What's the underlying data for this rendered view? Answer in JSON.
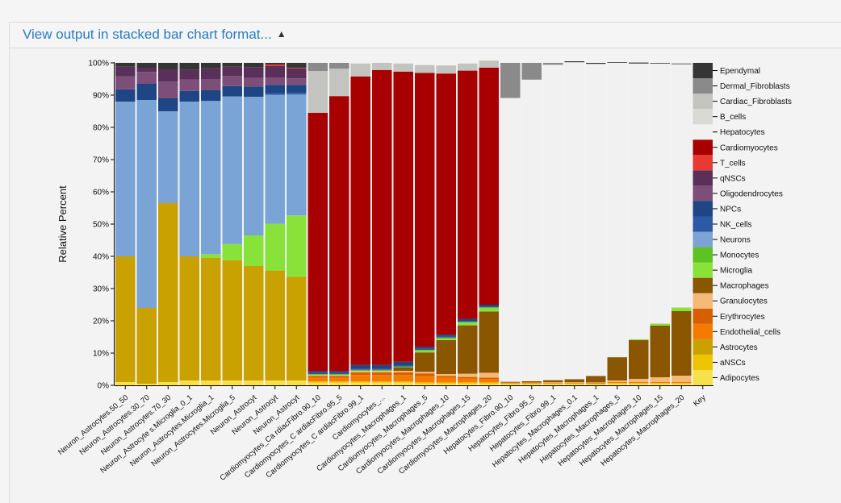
{
  "panel": {
    "title": "View output in stacked bar chart format...",
    "caret_icon": "caret-up-icon"
  },
  "chart_data": {
    "type": "bar",
    "stacked": true,
    "ylabel": "Relative Percent",
    "ylim": [
      0,
      100
    ],
    "ytick_labels": [
      "0%",
      "10%",
      "20%",
      "30%",
      "40%",
      "50%",
      "60%",
      "70%",
      "80%",
      "90%",
      "100%"
    ],
    "legend_position": "right",
    "key_label": "Key",
    "categories": [
      "Neuron_Astrocytes.50_50",
      "Neuron_Astrocytes.30_70",
      "Neuron_Astrocytes.70_30",
      "Neuron_Astrocyte s.Microglia_0_1",
      "Neuron_Astrocytes.Microglia_1",
      "Neuron_Astrocytes.Microglia_5",
      "Neuron_Astrocyt",
      "Neuron_Astrocyt",
      "Neuron_Astrocyt",
      "Cardiomyocytes_Ca rdiacFibro.90_10",
      "Cardiomyocytes_C ardiacFibro.95_5",
      "Cardiomyocytes_C ardiacFibro.99_1",
      "Cardiomyocytes_...",
      "Cardiomyocytes_Macrophages_1",
      "Cardiomyocytes_Macrophages_5",
      "Cardiomyocytes_Macrophages_10",
      "Cardiomyocytes_Macrophages_15",
      "Cardiomyocytes_Macrophages_20",
      "Hepatocytes_Fibro.90_10",
      "Hepatocytes_Fibro.95_5",
      "Hepatocytes_Fibro.99_1",
      "Hepatocytes_Macrophages_0.1",
      "Hepatocytes_Macrophages_1",
      "Hepatocytes_Macrophages_5",
      "Hepatocytes_Macrophages_10",
      "Hepatocytes_Macrophages_15",
      "Hepatocytes_Macrophages_20"
    ],
    "series": [
      {
        "name": "Adipocytes",
        "color": "#f7e14a",
        "values": [
          1,
          0.5,
          1,
          1.5,
          1.5,
          1.5,
          1.5,
          1.5,
          1.5,
          0.8,
          0.8,
          0.8,
          0.8,
          0.8,
          0.5,
          0.5,
          0.5,
          0.5,
          0.4,
          0.4,
          0.4,
          0.4,
          0.3,
          0.5,
          0.5,
          0.5,
          0.5
        ]
      },
      {
        "name": "aNSCs",
        "color": "#eec300",
        "values": [
          0,
          0,
          0,
          0,
          0,
          0,
          0,
          0,
          0,
          0.4,
          0.4,
          0.4,
          0.4,
          0.4,
          0.4,
          0.4,
          0.4,
          0.4,
          0.2,
          0.2,
          0.2,
          0.2,
          0.2,
          0.2,
          0.2,
          0.2,
          0.2
        ]
      },
      {
        "name": "Astrocytes",
        "color": "#c9a100",
        "values": [
          39,
          23.5,
          55.5,
          38.5,
          38,
          37.3,
          35.5,
          34.1,
          32.2,
          0,
          0,
          0,
          0,
          0,
          0,
          0,
          0,
          0,
          0,
          0,
          0,
          0,
          0,
          0,
          0,
          0,
          0
        ]
      },
      {
        "name": "Endothelial_cells",
        "color": "#f47a00",
        "values": [
          0,
          0,
          0,
          0,
          0,
          0,
          0,
          0,
          0,
          1.2,
          1.2,
          2,
          2,
          2,
          2,
          1.5,
          1.2,
          1,
          0.2,
          0.2,
          0.2,
          0.2,
          0.2,
          0.2,
          0.2,
          0.2,
          0.2
        ]
      },
      {
        "name": "Erythrocytes",
        "color": "#d65f00",
        "values": [
          0,
          0,
          0,
          0,
          0,
          0,
          0,
          0,
          0,
          0.5,
          0.5,
          0.8,
          0.8,
          0.8,
          0.8,
          0.5,
          0.5,
          0.5,
          0.1,
          0.1,
          0.1,
          0.1,
          0.1,
          0.1,
          0.1,
          0.1,
          0.1
        ]
      },
      {
        "name": "Granulocytes",
        "color": "#f4b977",
        "values": [
          0,
          0,
          0,
          0,
          0,
          0,
          0,
          0,
          0,
          0.3,
          0.3,
          0.5,
          0.5,
          0.5,
          0.5,
          0.6,
          1,
          1.5,
          0,
          0,
          0.1,
          0.1,
          0.1,
          0.5,
          1,
          1.5,
          2
        ]
      },
      {
        "name": "Macrophages",
        "color": "#8a5600",
        "values": [
          0,
          0,
          0,
          0,
          0,
          0,
          0,
          0,
          0,
          0,
          0,
          0,
          0,
          1,
          6,
          10.5,
          15,
          19,
          0.2,
          0.4,
          0.6,
          0.9,
          2,
          7.2,
          12,
          16,
          20
        ]
      },
      {
        "name": "Microglia",
        "color": "#88e23a",
        "values": [
          0,
          0,
          0,
          0,
          1.2,
          5,
          9.5,
          14.5,
          19,
          0,
          0,
          0,
          0,
          0,
          0.5,
          0.5,
          0.8,
          1,
          0,
          0,
          0,
          0,
          0,
          0.1,
          0.2,
          0.5,
          1
        ]
      },
      {
        "name": "Monocytes",
        "color": "#5ec322",
        "values": [
          0,
          0,
          0,
          0,
          0,
          0,
          0,
          0,
          0,
          0.3,
          0.3,
          0.3,
          0.3,
          0.3,
          0.3,
          0.3,
          0.3,
          0.3,
          0,
          0,
          0,
          0,
          0,
          0,
          0.1,
          0.1,
          0.1
        ]
      },
      {
        "name": "Neurons",
        "color": "#7aa3d6",
        "values": [
          48,
          64.5,
          28.5,
          48,
          47.5,
          45.8,
          43,
          40,
          37.5,
          0,
          0,
          0,
          0,
          0,
          0,
          0,
          0,
          0,
          0,
          0,
          0,
          0,
          0,
          0,
          0,
          0,
          0
        ]
      },
      {
        "name": "NK_cells",
        "color": "#2d5aa3",
        "values": [
          0,
          0,
          0,
          0,
          0,
          0,
          0,
          0.5,
          0.5,
          0.3,
          0.3,
          0.3,
          0.3,
          0.3,
          0.3,
          0.3,
          0.3,
          0.3,
          0,
          0,
          0,
          0,
          0,
          0,
          0,
          0,
          0
        ]
      },
      {
        "name": "NPCs",
        "color": "#1e4584",
        "values": [
          3.8,
          5,
          4,
          3.3,
          3.3,
          3.2,
          3.2,
          2.6,
          2.5,
          0.6,
          0.6,
          1.2,
          1.2,
          1.2,
          0.6,
          0.6,
          0.6,
          0.5,
          0,
          0,
          0,
          0,
          0,
          0,
          0,
          0,
          0
        ]
      },
      {
        "name": "Oligodendrocytes",
        "color": "#7c4e78",
        "values": [
          4,
          3.7,
          5.2,
          3.5,
          3.5,
          3.2,
          2.6,
          2.2,
          2,
          0,
          0,
          0,
          0,
          0,
          0,
          0,
          0,
          0,
          0,
          0,
          0,
          0,
          0,
          0,
          0,
          0,
          0
        ]
      },
      {
        "name": "qNSCs",
        "color": "#5a2f5a",
        "values": [
          3,
          1.3,
          3.8,
          3,
          3.3,
          2.8,
          3.4,
          3.6,
          3.1,
          0,
          0,
          0,
          0,
          0,
          0,
          0,
          0,
          0,
          0,
          0,
          0,
          0,
          0,
          0,
          0,
          0,
          0
        ]
      },
      {
        "name": "T_cells",
        "color": "#e83a35",
        "values": [
          0,
          0,
          0,
          0,
          0,
          0,
          0,
          0.5,
          0.2,
          0,
          0,
          0,
          0,
          0,
          0,
          0,
          0,
          0,
          0,
          0,
          0,
          0,
          0,
          0,
          0,
          0,
          0
        ]
      },
      {
        "name": "Cardiomyocytes",
        "color": "#a80000",
        "values": [
          0,
          0,
          0,
          0,
          0,
          0,
          0,
          0,
          0,
          80.1,
          85.3,
          89.5,
          91.5,
          90,
          85,
          81,
          77,
          73.5,
          0,
          0,
          0,
          0,
          0,
          0,
          0,
          0,
          0
        ]
      },
      {
        "name": "Hepatocytes",
        "color": "#f1f1f1",
        "values": [
          0,
          0,
          0,
          0,
          0,
          0,
          0,
          0,
          0,
          0,
          0,
          0,
          0,
          0,
          0,
          0,
          0,
          0,
          88,
          93.5,
          97.8,
          98.3,
          96.8,
          91.2,
          85.5,
          80.7,
          75.5
        ]
      },
      {
        "name": "B_cells",
        "color": "#d9d9d6",
        "values": [
          0,
          0,
          0,
          0,
          0,
          0,
          0,
          0,
          0,
          0,
          0,
          0,
          0,
          0,
          0,
          0,
          0,
          0,
          0,
          0,
          0,
          0,
          0,
          0,
          0,
          0,
          0
        ]
      },
      {
        "name": "Cardiac_Fibroblasts",
        "color": "#c3c3c0",
        "values": [
          0,
          0,
          0,
          0,
          0,
          0,
          0,
          0,
          0,
          13,
          8.5,
          4,
          2.2,
          2.5,
          2.4,
          2.5,
          2.2,
          2.2,
          0,
          0,
          0,
          0,
          0,
          0,
          0,
          0,
          0
        ]
      },
      {
        "name": "Dermal_Fibroblasts",
        "color": "#8a8a8a",
        "values": [
          0,
          0,
          0,
          0,
          0,
          0,
          0,
          0,
          0,
          2.5,
          1.8,
          0,
          0,
          0,
          0,
          0,
          0,
          0,
          10.9,
          5.2,
          0.6,
          0,
          0,
          0,
          0,
          0,
          0
        ]
      },
      {
        "name": "Ependymal",
        "color": "#353535",
        "values": [
          1.2,
          1.5,
          2,
          2.2,
          1.7,
          1.2,
          1.3,
          0.5,
          1.5,
          0,
          0,
          0,
          0,
          0,
          0,
          0,
          0,
          0,
          0,
          0,
          0,
          0.3,
          0.3,
          0.2,
          0.3,
          0.2,
          0.2
        ]
      }
    ]
  }
}
